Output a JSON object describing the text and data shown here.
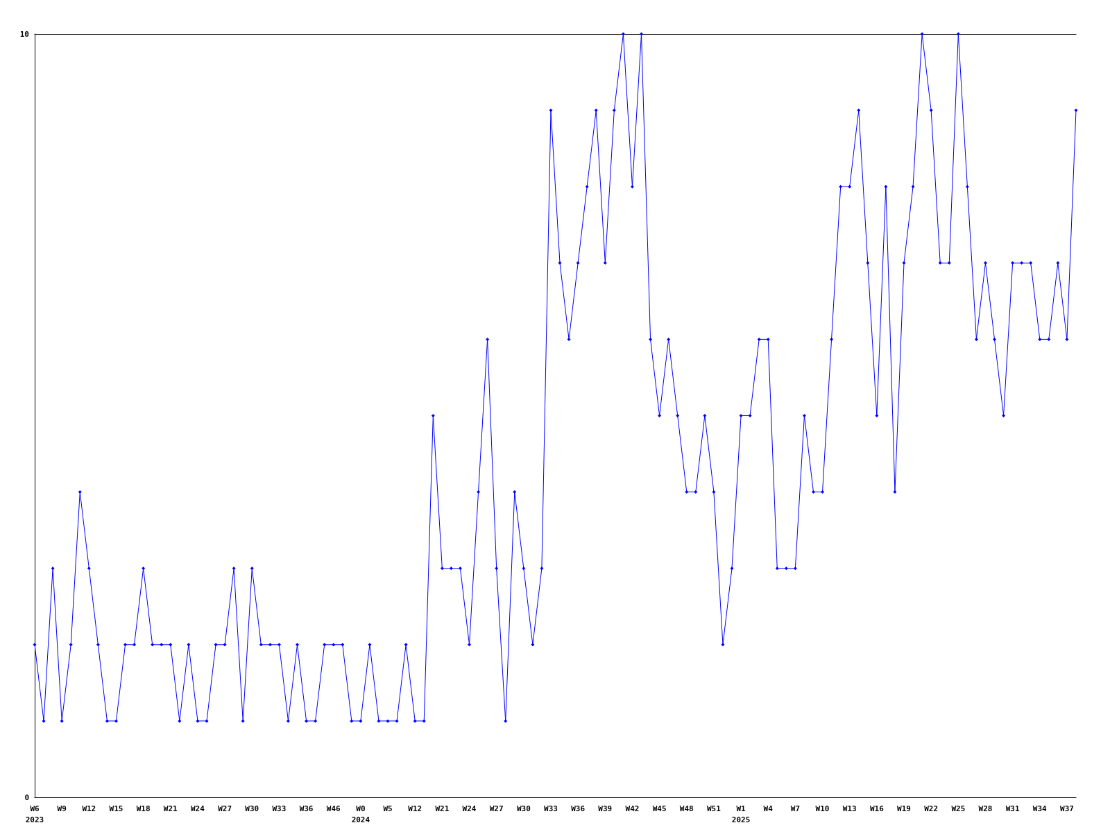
{
  "chart_data": {
    "type": "line",
    "categories": [
      "W6\n2023",
      null,
      null,
      "W9",
      null,
      null,
      "W12",
      null,
      null,
      "W15",
      null,
      null,
      "W18",
      null,
      null,
      "W21",
      null,
      null,
      "W24",
      null,
      null,
      "W27",
      null,
      null,
      "W30",
      null,
      null,
      "W33",
      null,
      null,
      "W36",
      null,
      null,
      "W46",
      null,
      null,
      "W0\n2024",
      null,
      null,
      "W5",
      null,
      null,
      "W12",
      null,
      null,
      "W21",
      null,
      null,
      "W24",
      null,
      null,
      "W27",
      null,
      null,
      "W30",
      null,
      null,
      "W33",
      null,
      null,
      "W36",
      null,
      null,
      "W39",
      null,
      null,
      "W42",
      null,
      null,
      "W45",
      null,
      null,
      "W48",
      null,
      null,
      "W51",
      null,
      null,
      "W1\n2025",
      null,
      null,
      "W4",
      null,
      null,
      "W7",
      null,
      null,
      "W10",
      null,
      null,
      "W13",
      null,
      null,
      "W16",
      null,
      null,
      "W19",
      null,
      null,
      "W22",
      null,
      null,
      "W25",
      null,
      null,
      "W28",
      null,
      null,
      "W31",
      null,
      null,
      "W34",
      null,
      null,
      "W37",
      null
    ],
    "series": [
      {
        "color": "#0000ff",
        "values": [
          2,
          1,
          3,
          1,
          2,
          4,
          3,
          2,
          1,
          1,
          2,
          2,
          3,
          2,
          2,
          2,
          1,
          2,
          1,
          1,
          2,
          2,
          3,
          1,
          3,
          2,
          2,
          2,
          1,
          2,
          1,
          1,
          2,
          2,
          2,
          1,
          1,
          2,
          1,
          1,
          1,
          2,
          1,
          1,
          5,
          3,
          3,
          3,
          2,
          4,
          6,
          3,
          1,
          4,
          3,
          2,
          3,
          9,
          7,
          6,
          7,
          8,
          9,
          7,
          9,
          10,
          8,
          10,
          6,
          5,
          6,
          5,
          4,
          4,
          5,
          4,
          2,
          3,
          5,
          5,
          6,
          6,
          3,
          3,
          3,
          5,
          4,
          4,
          6,
          8,
          8,
          9,
          7,
          5,
          8,
          4,
          7,
          8,
          10,
          9,
          7,
          7,
          10,
          8,
          6,
          7,
          6,
          5,
          7,
          7,
          7,
          6,
          6,
          7,
          6,
          9
        ]
      }
    ],
    "ylim": [
      0,
      10
    ],
    "yticks": [
      0,
      10
    ],
    "marker": "diamond",
    "line_style": "solid"
  }
}
